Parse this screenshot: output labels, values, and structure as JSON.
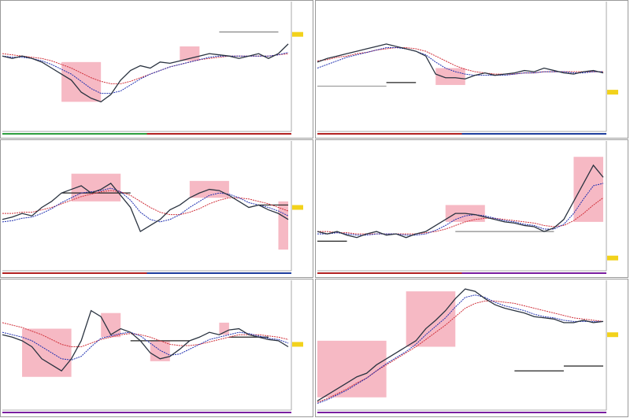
{
  "panels": [
    {
      "ylim": [
        0,
        100
      ],
      "price": [
        60,
        58,
        60,
        58,
        55,
        50,
        45,
        40,
        30,
        25,
        22,
        28,
        40,
        48,
        52,
        50,
        55,
        54,
        56,
        58,
        60,
        62,
        61,
        60,
        58,
        60,
        62,
        58,
        62,
        70
      ],
      "ma_red": [
        62,
        61,
        60,
        59,
        58,
        56,
        53,
        50,
        46,
        42,
        39,
        37,
        37,
        39,
        42,
        45,
        48,
        51,
        53,
        55,
        57,
        58,
        59,
        60,
        60,
        60,
        60,
        60,
        61,
        62
      ],
      "ma_blue": [
        60,
        59,
        59,
        58,
        56,
        53,
        49,
        45,
        39,
        33,
        29,
        29,
        31,
        36,
        41,
        45,
        48,
        51,
        53,
        55,
        57,
        59,
        60,
        60,
        60,
        60,
        60,
        60,
        61,
        63
      ],
      "highlights": [
        {
          "x0": 6,
          "x1": 10,
          "y0": 22,
          "y1": 55
        },
        {
          "x0": 18,
          "x1": 20,
          "y0": 56,
          "y1": 68
        }
      ],
      "levels": [
        {
          "x0": 22,
          "x1": 28,
          "y": 80,
          "color": "#888"
        }
      ],
      "marker": 78,
      "strip": [
        "#2e9e3e",
        "#b22222"
      ]
    },
    {
      "ylim": [
        0,
        100
      ],
      "price": [
        55,
        58,
        60,
        62,
        64,
        66,
        68,
        70,
        68,
        66,
        64,
        60,
        45,
        42,
        42,
        41,
        44,
        46,
        44,
        45,
        46,
        48,
        47,
        50,
        48,
        46,
        45,
        47,
        48,
        46
      ],
      "ma_red": [
        56,
        57,
        59,
        60,
        62,
        63,
        65,
        66,
        67,
        67,
        66,
        64,
        60,
        56,
        52,
        49,
        47,
        46,
        45,
        45,
        45,
        46,
        46,
        47,
        47,
        47,
        47,
        47,
        47,
        47
      ],
      "ma_blue": [
        50,
        53,
        56,
        59,
        61,
        63,
        65,
        67,
        67,
        66,
        64,
        61,
        55,
        50,
        47,
        45,
        44,
        44,
        44,
        44,
        45,
        46,
        46,
        47,
        47,
        47,
        46,
        46,
        47,
        47
      ],
      "highlights": [
        {
          "x0": 12,
          "x1": 15,
          "y0": 36,
          "y1": 50
        }
      ],
      "levels": [
        {
          "x0": 0,
          "x1": 7,
          "y": 35,
          "color": "#999"
        },
        {
          "x0": 7,
          "x1": 10,
          "y": 38,
          "color": "#222"
        }
      ],
      "marker": 30,
      "strip": [
        "#b22222",
        "#1f3f9e"
      ]
    },
    {
      "ylim": [
        0,
        100
      ],
      "price": [
        40,
        42,
        45,
        43,
        50,
        55,
        62,
        65,
        68,
        62,
        65,
        70,
        60,
        50,
        30,
        35,
        40,
        48,
        52,
        58,
        62,
        65,
        64,
        60,
        55,
        50,
        52,
        48,
        45,
        40
      ],
      "ma_red": [
        45,
        45,
        46,
        46,
        48,
        50,
        53,
        56,
        59,
        61,
        63,
        64,
        63,
        60,
        55,
        50,
        46,
        44,
        44,
        46,
        49,
        53,
        56,
        58,
        58,
        57,
        55,
        53,
        50,
        47
      ],
      "ma_blue": [
        38,
        39,
        41,
        42,
        45,
        49,
        54,
        58,
        62,
        63,
        64,
        66,
        63,
        56,
        46,
        40,
        38,
        40,
        44,
        50,
        55,
        60,
        62,
        61,
        58,
        54,
        52,
        50,
        47,
        43
      ],
      "highlights": [
        {
          "x0": 7,
          "x1": 12,
          "y0": 55,
          "y1": 78
        },
        {
          "x0": 19,
          "x1": 23,
          "y0": 58,
          "y1": 72
        },
        {
          "x0": 28,
          "x1": 29,
          "y0": 15,
          "y1": 55
        }
      ],
      "levels": [
        {
          "x0": 6,
          "x1": 13,
          "y": 62,
          "color": "#222"
        },
        {
          "x0": 26,
          "x1": 29,
          "y": 52,
          "color": "#222"
        }
      ],
      "marker": 50,
      "strip": [
        "#b22222",
        "#1f3f9e"
      ]
    },
    {
      "ylim": [
        0,
        100
      ],
      "price": [
        30,
        28,
        30,
        27,
        25,
        28,
        30,
        27,
        28,
        25,
        28,
        30,
        35,
        40,
        45,
        45,
        44,
        42,
        40,
        38,
        37,
        35,
        34,
        30,
        33,
        40,
        55,
        70,
        85,
        75
      ],
      "ma_red": [
        30,
        30,
        29,
        29,
        28,
        28,
        28,
        28,
        28,
        28,
        28,
        29,
        30,
        32,
        35,
        38,
        40,
        41,
        41,
        40,
        39,
        38,
        37,
        35,
        34,
        35,
        39,
        45,
        52,
        58
      ],
      "ma_blue": [
        28,
        28,
        29,
        28,
        27,
        27,
        28,
        28,
        28,
        27,
        27,
        28,
        31,
        35,
        40,
        43,
        44,
        43,
        41,
        39,
        38,
        36,
        35,
        32,
        32,
        36,
        45,
        57,
        68,
        70
      ],
      "highlights": [
        {
          "x0": 13,
          "x1": 17,
          "y0": 38,
          "y1": 52
        },
        {
          "x0": 26,
          "x1": 29,
          "y0": 38,
          "y1": 92
        }
      ],
      "levels": [
        {
          "x0": 0,
          "x1": 3,
          "y": 22,
          "color": "#222"
        },
        {
          "x0": 14,
          "x1": 24,
          "y": 30,
          "color": "#888"
        }
      ],
      "marker": 8,
      "strip": [
        "#b22222",
        "#7a1fa0"
      ]
    },
    {
      "ylim": [
        0,
        100
      ],
      "price": [
        60,
        58,
        55,
        50,
        40,
        35,
        30,
        40,
        55,
        80,
        75,
        60,
        65,
        62,
        55,
        45,
        40,
        42,
        48,
        55,
        58,
        62,
        60,
        64,
        65,
        60,
        58,
        56,
        55,
        50
      ],
      "ma_red": [
        70,
        68,
        66,
        63,
        60,
        56,
        52,
        50,
        50,
        53,
        56,
        58,
        60,
        61,
        60,
        58,
        55,
        52,
        51,
        51,
        52,
        54,
        56,
        58,
        60,
        60,
        60,
        59,
        58,
        56
      ],
      "ma_blue": [
        62,
        60,
        58,
        55,
        50,
        45,
        40,
        39,
        42,
        50,
        57,
        59,
        61,
        62,
        59,
        53,
        47,
        43,
        44,
        48,
        52,
        56,
        58,
        60,
        62,
        61,
        59,
        57,
        56,
        53
      ],
      "highlights": [
        {
          "x0": 2,
          "x1": 7,
          "y0": 25,
          "y1": 65
        },
        {
          "x0": 10,
          "x1": 12,
          "y0": 58,
          "y1": 78
        },
        {
          "x0": 15,
          "x1": 17,
          "y0": 38,
          "y1": 55
        },
        {
          "x0": 22,
          "x1": 23,
          "y0": 60,
          "y1": 70
        }
      ],
      "levels": [
        {
          "x0": 13,
          "x1": 19,
          "y": 55,
          "color": "#222"
        },
        {
          "x0": 23,
          "x1": 27,
          "y": 58,
          "color": "#222"
        }
      ],
      "marker": 52,
      "strip": [
        "#7a1fa0",
        "#7a1fa0"
      ]
    },
    {
      "ylim": [
        0,
        100
      ],
      "price": [
        5,
        10,
        15,
        20,
        25,
        28,
        35,
        40,
        45,
        50,
        55,
        65,
        72,
        80,
        90,
        98,
        96,
        90,
        85,
        82,
        80,
        78,
        75,
        74,
        73,
        70,
        70,
        72,
        70,
        71
      ],
      "ma_red": [
        4,
        7,
        11,
        15,
        20,
        24,
        30,
        35,
        40,
        45,
        50,
        56,
        62,
        68,
        75,
        82,
        86,
        88,
        88,
        87,
        86,
        84,
        82,
        80,
        78,
        76,
        74,
        73,
        72,
        71
      ],
      "ma_blue": [
        3,
        6,
        10,
        14,
        19,
        24,
        30,
        36,
        41,
        46,
        52,
        60,
        67,
        74,
        83,
        91,
        93,
        91,
        87,
        84,
        82,
        80,
        77,
        75,
        74,
        72,
        71,
        71,
        71,
        71
      ],
      "highlights": [
        {
          "x0": 0,
          "x1": 7,
          "y0": 8,
          "y1": 55
        },
        {
          "x0": 9,
          "x1": 14,
          "y0": 50,
          "y1": 96
        }
      ],
      "levels": [
        {
          "x0": 20,
          "x1": 25,
          "y": 30,
          "color": "#222"
        },
        {
          "x0": 25,
          "x1": 29,
          "y": 34,
          "color": "#222"
        }
      ],
      "marker": 60,
      "strip": [
        "#7a1fa0",
        "#7a1fa0"
      ]
    }
  ]
}
